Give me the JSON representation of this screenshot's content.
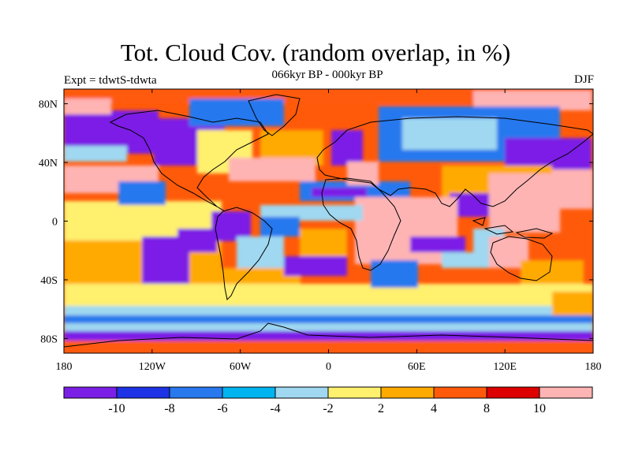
{
  "plot": {
    "title": "Tot. Cloud Cov. (random overlap, in %)",
    "subtitle": "066kyr BP - 000kyr BP",
    "experiment": "Expt = tdwtS-tdwta",
    "season": "DJF"
  },
  "chart_data": {
    "type": "heatmap",
    "projection": "cylindrical-equidistant",
    "variable": "Total cloud cover difference (%)",
    "x_range": [
      -180,
      180
    ],
    "y_range": [
      -90,
      90
    ],
    "x_ticks": [
      {
        "value": -180,
        "label": "180"
      },
      {
        "value": -120,
        "label": "120W"
      },
      {
        "value": -60,
        "label": "60W"
      },
      {
        "value": 0,
        "label": "0"
      },
      {
        "value": 60,
        "label": "60E"
      },
      {
        "value": 120,
        "label": "120E"
      },
      {
        "value": 180,
        "label": "180"
      }
    ],
    "y_ticks": [
      {
        "value": 80,
        "label": "80N"
      },
      {
        "value": 40,
        "label": "40N"
      },
      {
        "value": 0,
        "label": "0"
      },
      {
        "value": -40,
        "label": "40S"
      },
      {
        "value": -80,
        "label": "80S"
      }
    ],
    "colorbar": {
      "colors": [
        "#7b1fe6",
        "#1e32e6",
        "#2878ee",
        "#00b4f0",
        "#9fd8f0",
        "#fff06e",
        "#ffaa00",
        "#ff5a0a",
        "#dc0000",
        "#ffb4b4"
      ],
      "tick_labels": [
        "-10",
        "-8",
        "-6",
        "-4",
        "-2",
        "2",
        "4",
        "8",
        "10"
      ]
    }
  }
}
